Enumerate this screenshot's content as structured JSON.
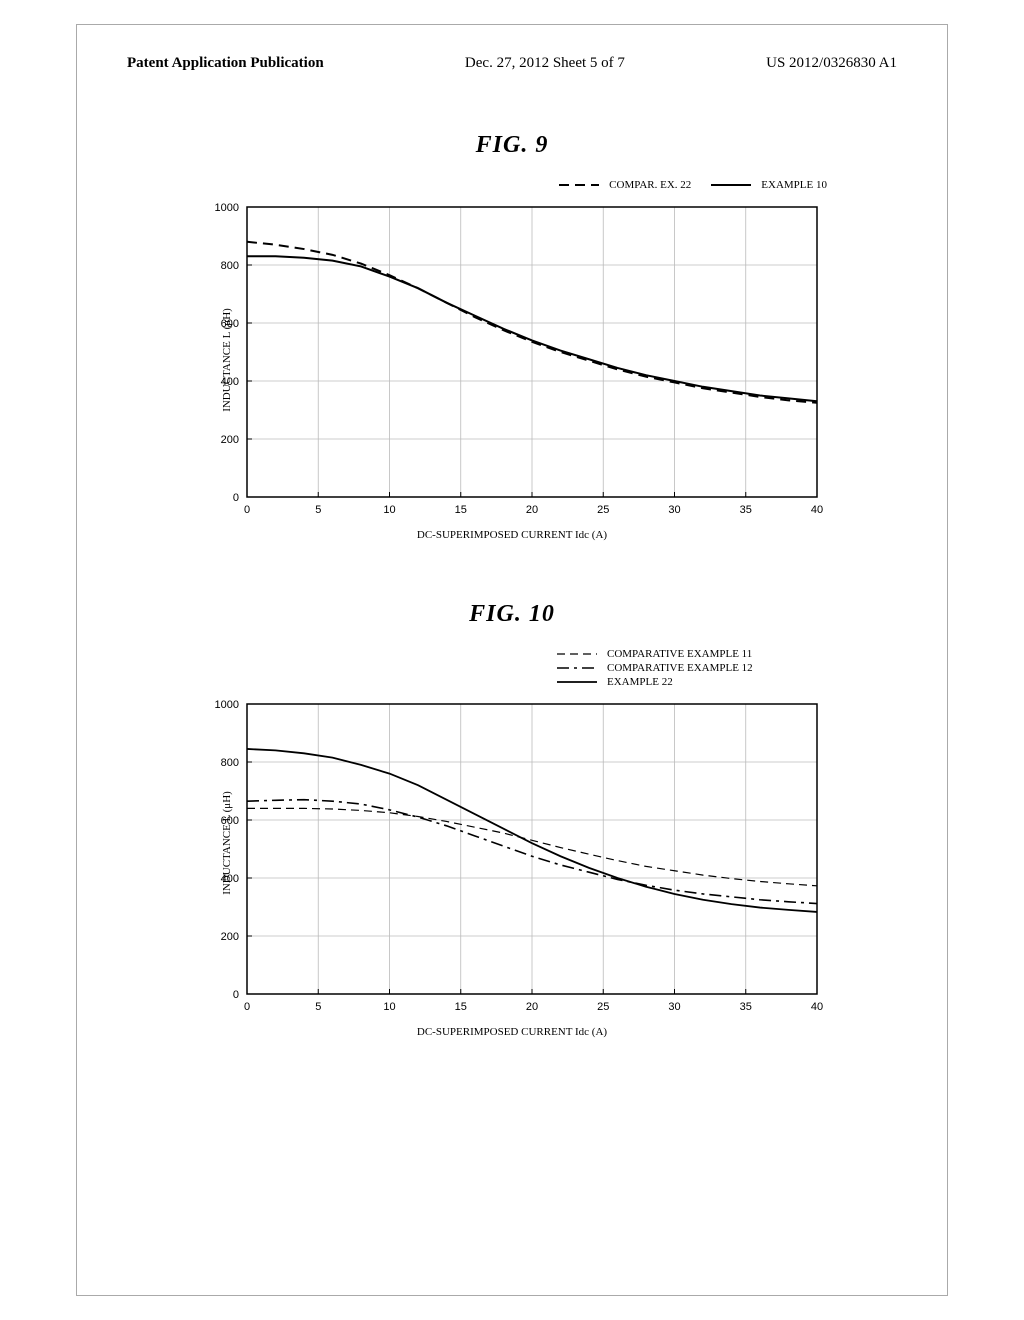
{
  "header": {
    "left": "Patent Application Publication",
    "mid": "Dec. 27, 2012  Sheet 5 of 7",
    "right": "US 2012/0326830 A1"
  },
  "fig9": {
    "title": "FIG. 9",
    "xlabel": "DC-SUPERIMPOSED CURRENT    Idc   (A)",
    "ylabel": "INDUCTANCE   L    (μH)",
    "xlim": [
      0,
      40
    ],
    "ylim": [
      0,
      1000
    ],
    "xtick_step": 5,
    "ytick_step": 200,
    "legend": [
      {
        "label": "COMPAR. EX. 22",
        "dash": "10,6",
        "w": 2
      },
      {
        "label": "EXAMPLE 10",
        "dash": "",
        "w": 2
      }
    ],
    "series": {
      "compar_ex_22": {
        "dash": "10,6",
        "w": 2,
        "pts": [
          [
            0,
            880
          ],
          [
            2,
            870
          ],
          [
            4,
            855
          ],
          [
            6,
            835
          ],
          [
            8,
            805
          ],
          [
            10,
            765
          ],
          [
            12,
            720
          ],
          [
            14,
            670
          ],
          [
            16,
            620
          ],
          [
            18,
            575
          ],
          [
            20,
            535
          ],
          [
            22,
            500
          ],
          [
            24,
            470
          ],
          [
            26,
            440
          ],
          [
            28,
            415
          ],
          [
            30,
            395
          ],
          [
            32,
            375
          ],
          [
            34,
            360
          ],
          [
            36,
            345
          ],
          [
            38,
            333
          ],
          [
            40,
            325
          ]
        ]
      },
      "example_10": {
        "dash": "",
        "w": 2,
        "pts": [
          [
            0,
            830
          ],
          [
            2,
            830
          ],
          [
            4,
            825
          ],
          [
            6,
            815
          ],
          [
            8,
            795
          ],
          [
            10,
            760
          ],
          [
            12,
            720
          ],
          [
            14,
            670
          ],
          [
            16,
            625
          ],
          [
            18,
            580
          ],
          [
            20,
            540
          ],
          [
            22,
            505
          ],
          [
            24,
            475
          ],
          [
            26,
            445
          ],
          [
            28,
            420
          ],
          [
            30,
            400
          ],
          [
            32,
            380
          ],
          [
            34,
            365
          ],
          [
            36,
            350
          ],
          [
            38,
            340
          ],
          [
            40,
            330
          ]
        ]
      }
    }
  },
  "fig10": {
    "title": "FIG. 10",
    "xlabel": "DC-SUPERIMPOSED CURRENT    Idc   (A)",
    "ylabel": "INDUCTANCE   L    (μH)",
    "xlim": [
      0,
      40
    ],
    "ylim": [
      0,
      1000
    ],
    "xtick_step": 5,
    "ytick_step": 200,
    "legend": [
      {
        "label": "COMPARATIVE EXAMPLE 11",
        "dash": "8,5",
        "w": 1.2
      },
      {
        "label": "COMPARATIVE EXAMPLE 12",
        "dash": "12,5,3,5",
        "w": 1.6
      },
      {
        "label": "EXAMPLE 22",
        "dash": "",
        "w": 1.8
      }
    ],
    "series": {
      "ce11": {
        "dash": "8,5",
        "w": 1.2,
        "pts": [
          [
            0,
            640
          ],
          [
            2,
            640
          ],
          [
            4,
            640
          ],
          [
            6,
            638
          ],
          [
            8,
            633
          ],
          [
            10,
            625
          ],
          [
            12,
            612
          ],
          [
            14,
            595
          ],
          [
            16,
            575
          ],
          [
            18,
            555
          ],
          [
            20,
            530
          ],
          [
            22,
            505
          ],
          [
            24,
            482
          ],
          [
            26,
            460
          ],
          [
            28,
            440
          ],
          [
            30,
            425
          ],
          [
            32,
            410
          ],
          [
            34,
            398
          ],
          [
            36,
            388
          ],
          [
            38,
            380
          ],
          [
            40,
            373
          ]
        ]
      },
      "ce12": {
        "dash": "12,5,3,5",
        "w": 1.6,
        "pts": [
          [
            0,
            665
          ],
          [
            2,
            668
          ],
          [
            4,
            670
          ],
          [
            6,
            665
          ],
          [
            8,
            655
          ],
          [
            10,
            635
          ],
          [
            12,
            610
          ],
          [
            14,
            580
          ],
          [
            16,
            545
          ],
          [
            18,
            510
          ],
          [
            20,
            475
          ],
          [
            22,
            445
          ],
          [
            24,
            420
          ],
          [
            26,
            395
          ],
          [
            28,
            375
          ],
          [
            30,
            358
          ],
          [
            32,
            345
          ],
          [
            34,
            335
          ],
          [
            36,
            325
          ],
          [
            38,
            318
          ],
          [
            40,
            312
          ]
        ]
      },
      "ex22": {
        "dash": "",
        "w": 1.8,
        "pts": [
          [
            0,
            845
          ],
          [
            2,
            840
          ],
          [
            4,
            830
          ],
          [
            6,
            815
          ],
          [
            8,
            790
          ],
          [
            10,
            760
          ],
          [
            12,
            720
          ],
          [
            14,
            670
          ],
          [
            16,
            620
          ],
          [
            18,
            570
          ],
          [
            20,
            520
          ],
          [
            22,
            475
          ],
          [
            24,
            435
          ],
          [
            26,
            400
          ],
          [
            28,
            370
          ],
          [
            30,
            345
          ],
          [
            32,
            325
          ],
          [
            34,
            310
          ],
          [
            36,
            298
          ],
          [
            38,
            290
          ],
          [
            40,
            283
          ]
        ]
      }
    }
  },
  "colors": {
    "axis": "#000",
    "grid": "#bbb",
    "bg": "#fff"
  }
}
